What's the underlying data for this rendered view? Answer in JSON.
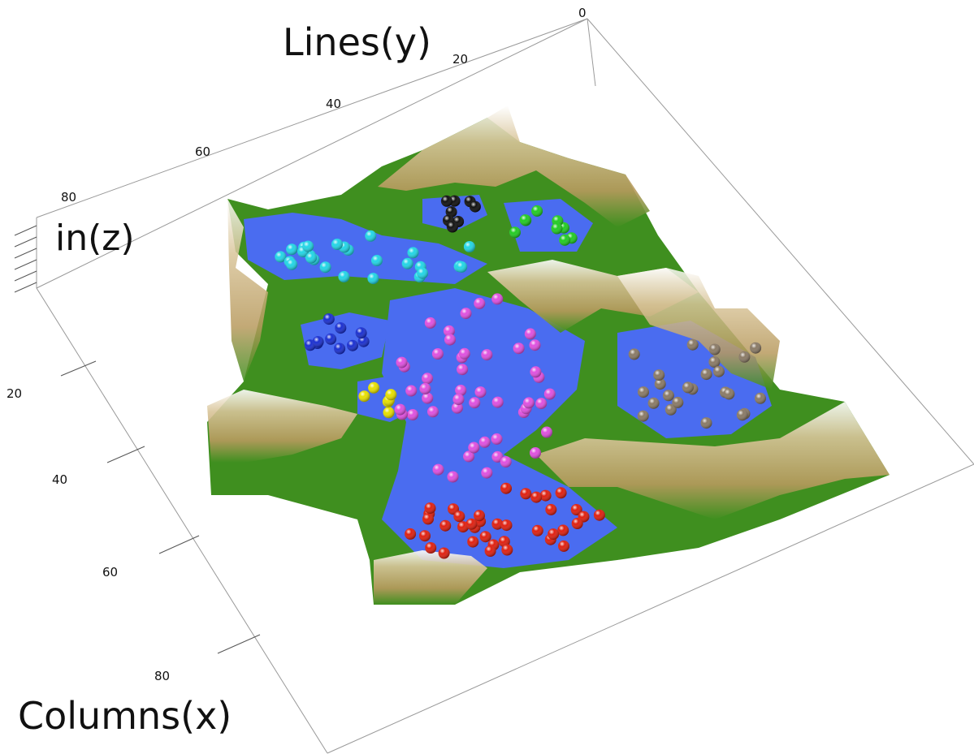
{
  "chart_data": {
    "type": "surface-3d",
    "axes": {
      "x": {
        "label": "Columns(x)",
        "ticks": [
          "20",
          "40",
          "60",
          "80"
        ]
      },
      "y": {
        "label": "Lines(y)",
        "ticks": [
          "0",
          "20",
          "40",
          "60",
          "80"
        ]
      },
      "z": {
        "label": "in(z)"
      }
    },
    "surface_colors": {
      "basin": "#4a6cf0",
      "lowland": "#3f8f1f",
      "slope": "#c8b07a",
      "peak": "#ffffff"
    },
    "clusters": [
      {
        "color": "#22d6e6",
        "points": 26
      },
      {
        "color": "#1a2fd0",
        "points": 10
      },
      {
        "color": "#111111",
        "points": 9
      },
      {
        "color": "#22cc22",
        "points": 9
      },
      {
        "color": "#e8e000",
        "points": 6
      },
      {
        "color": "#e050e0",
        "points": 48
      },
      {
        "color": "#8a7a66",
        "points": 24
      },
      {
        "color": "#e02010",
        "points": 38
      }
    ]
  }
}
